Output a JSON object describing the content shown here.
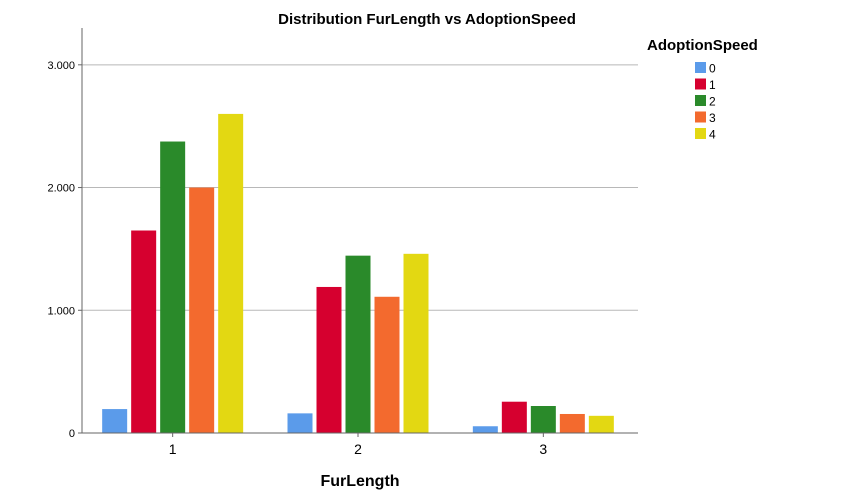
{
  "chart_data": {
    "type": "bar",
    "title": "Distribution FurLength vs AdoptionSpeed",
    "xlabel": "FurLength",
    "ylabel": "",
    "categories": [
      "1",
      "2",
      "3"
    ],
    "ylim": [
      0,
      3300
    ],
    "yticks": [
      0,
      1000,
      2000,
      3000
    ],
    "ytick_labels": [
      "0",
      "1.000",
      "2.000",
      "3.000"
    ],
    "grid": true,
    "legend": {
      "title": "AdoptionSpeed",
      "placement": "top-right"
    },
    "series": [
      {
        "name": "0",
        "color": "#5b9bea",
        "values": [
          195,
          160,
          55
        ]
      },
      {
        "name": "1",
        "color": "#d6002f",
        "values": [
          1650,
          1190,
          255
        ]
      },
      {
        "name": "2",
        "color": "#2a8a2a",
        "values": [
          2375,
          1445,
          220
        ]
      },
      {
        "name": "3",
        "color": "#f36a2e",
        "values": [
          2000,
          1110,
          155
        ]
      },
      {
        "name": "4",
        "color": "#e3d812",
        "values": [
          2600,
          1460,
          140
        ]
      }
    ]
  }
}
